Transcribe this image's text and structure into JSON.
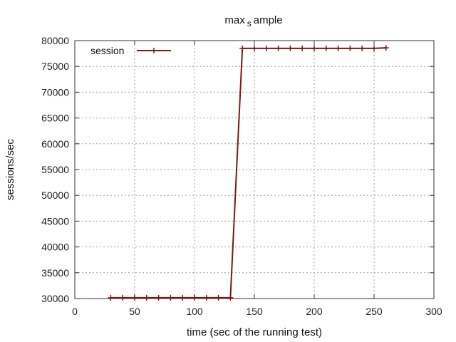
{
  "chart_data": {
    "type": "line",
    "title_parts": [
      "max",
      "s",
      "ample"
    ],
    "xlabel": "time (sec of the running test)",
    "ylabel": "sessions/sec",
    "xlim": [
      0,
      300
    ],
    "ylim": [
      30000,
      80000
    ],
    "x_ticks": [
      0,
      50,
      100,
      150,
      200,
      250,
      300
    ],
    "y_ticks": [
      30000,
      35000,
      40000,
      45000,
      50000,
      55000,
      60000,
      65000,
      70000,
      75000,
      80000
    ],
    "grid": true,
    "legend_position": "top-left",
    "series": [
      {
        "name": "session",
        "color": "#7b1a14",
        "points": [
          [
            30,
            30150
          ],
          [
            40,
            30150
          ],
          [
            50,
            30150
          ],
          [
            60,
            30150
          ],
          [
            70,
            30150
          ],
          [
            80,
            30150
          ],
          [
            90,
            30150
          ],
          [
            100,
            30150
          ],
          [
            110,
            30150
          ],
          [
            120,
            30150
          ],
          [
            130,
            30150
          ],
          [
            140,
            78500
          ],
          [
            150,
            78500
          ],
          [
            160,
            78500
          ],
          [
            170,
            78500
          ],
          [
            180,
            78500
          ],
          [
            190,
            78500
          ],
          [
            200,
            78500
          ],
          [
            210,
            78500
          ],
          [
            220,
            78500
          ],
          [
            230,
            78500
          ],
          [
            240,
            78500
          ],
          [
            250,
            78500
          ],
          [
            260,
            78600
          ]
        ]
      }
    ]
  }
}
